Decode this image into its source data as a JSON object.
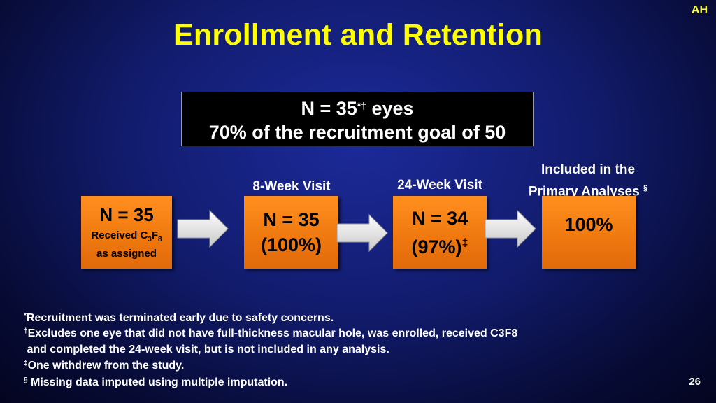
{
  "corner_initials": "AH",
  "title": "Enrollment and Retention",
  "summary": {
    "line1_pre": "N = 35",
    "line1_sup": "*†",
    "line1_post": " eyes",
    "line2": "70% of the recruitment goal of 50"
  },
  "stages": {
    "label_8wk": "8-Week Visit",
    "label_24wk": "24-Week Visit",
    "label_primary_line1": "Included in the",
    "label_primary_line2": "Primary Analyses",
    "label_primary_mark": "§"
  },
  "boxes": {
    "enrolled_n": "N = 35",
    "enrolled_line1_pre": "Received C",
    "enrolled_sub1": "3",
    "enrolled_mid": "F",
    "enrolled_sub2": "8",
    "enrolled_line2": "as assigned",
    "week8_n": "N = 35",
    "week8_pct": "(100%)",
    "week24_n": "N = 34",
    "week24_pct": "(97%)",
    "week24_mark": "‡",
    "primary_pct": "100%"
  },
  "footnotes": {
    "f1_mark": "*",
    "f1_text": "Recruitment was terminated early due to safety concerns.",
    "f2_mark": "†",
    "f2_text": "Excludes one eye that did not have full-thickness macular hole, was enrolled, received C3F8",
    "f2_cont": " and completed the 24-week visit, but is not included in any analysis.",
    "f3_mark": "‡",
    "f3_text": "One withdrew from the study.",
    "f4_mark": "§",
    "f4_text": " Missing data imputed using multiple imputation."
  },
  "page_number": "26",
  "colors": {
    "title": "#ffff00",
    "box_orange": "#f07a10",
    "background": "#121c6e",
    "arrow": "#ffffff"
  },
  "icons": [
    "right-arrow-icon"
  ]
}
